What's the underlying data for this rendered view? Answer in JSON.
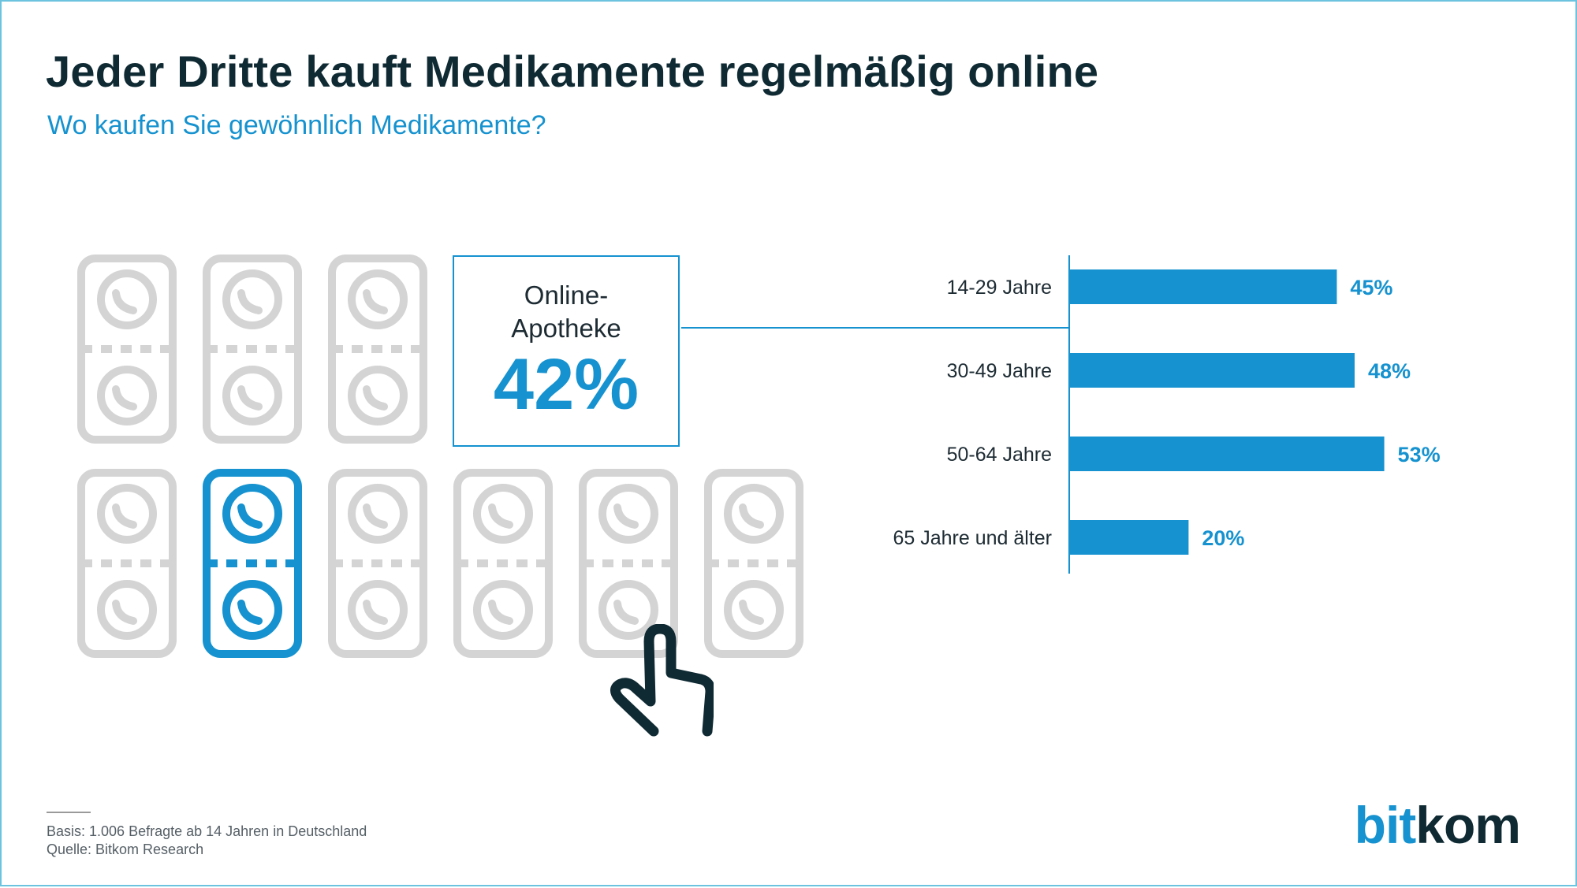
{
  "header": {
    "title": "Jeder Dritte kauft Medikamente regelmäßig online",
    "subtitle": "Wo kaufen Sie gewöhnlich Medikamente?"
  },
  "callout": {
    "label_line1": "Online-",
    "label_line2": "Apotheke",
    "value": "42%"
  },
  "pictogram": {
    "icon": "medicine-pack-icon",
    "highlighted_icon": "medicine-pack-icon",
    "pointer_icon": "hand-pointer-icon",
    "colors": {
      "inactive": "#d4d4d4",
      "active": "#1592cf",
      "pointer": "#0f2a33"
    }
  },
  "chart_data": {
    "type": "bar",
    "orientation": "horizontal",
    "categories": [
      "14-29 Jahre",
      "30-49 Jahre",
      "50-64 Jahre",
      "65 Jahre und älter"
    ],
    "values": [
      45,
      48,
      53,
      20
    ],
    "value_labels": [
      "45%",
      "48%",
      "53%",
      "20%"
    ],
    "unit": "%",
    "xlim": [
      0,
      60
    ],
    "bar_color": "#1592cf",
    "grid": false,
    "axis_labels_visible": false
  },
  "footer": {
    "basis": "Basis: 1.006 Befragte ab 14 Jahren in Deutschland",
    "source": "Quelle: Bitkom Research",
    "logo_part1": "bit",
    "logo_part2": "kom"
  }
}
